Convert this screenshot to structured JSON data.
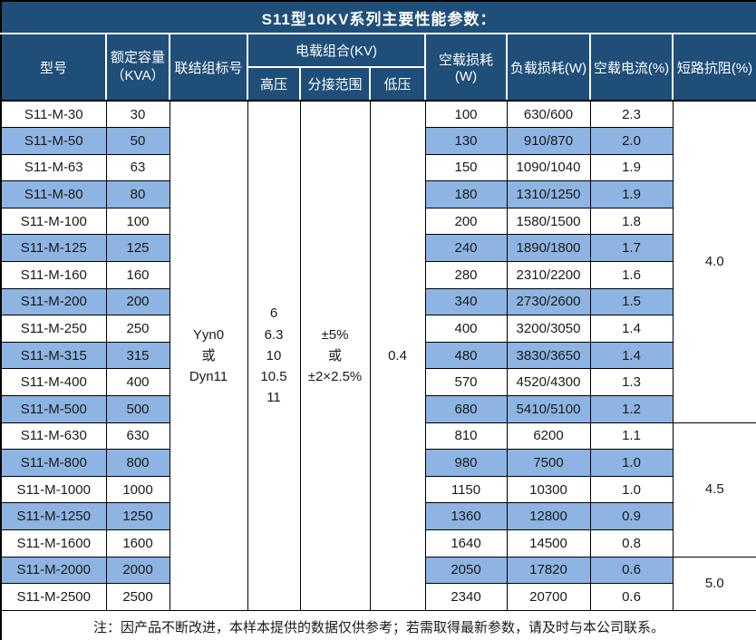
{
  "title": "S11型10KV系列主要性能参数：",
  "header": {
    "model": "型号",
    "capacity_line1": "额定容量",
    "capacity_line2": "（KVA）",
    "connection": "联结组标号",
    "voltage_combo": "电载组合(KV)",
    "hv": "高压",
    "tap_range": "分接范围",
    "lv": "低压",
    "no_load_loss": "空载损耗(W)",
    "load_loss": "负载损耗(W)",
    "no_load_current": "空载电流(%)",
    "impedance": "短路抗阻(%)"
  },
  "merged": {
    "connection": [
      "Yyn0",
      "或",
      "Dyn11"
    ],
    "hv": [
      "6",
      "6.3",
      "10",
      "10.5",
      "11"
    ],
    "tap": [
      "±5%",
      "或",
      "±2×2.5%"
    ],
    "lv": "0.4",
    "impedance_groups": [
      {
        "value": "4.0",
        "rows": 12
      },
      {
        "value": "4.5",
        "rows": 5
      },
      {
        "value": "5.0",
        "rows": 2
      }
    ]
  },
  "rows": [
    {
      "model": "S11-M-30",
      "kva": "30",
      "no_load_loss": "100",
      "load_loss": "630/600",
      "no_load_current": "2.3"
    },
    {
      "model": "S11-M-50",
      "kva": "50",
      "no_load_loss": "130",
      "load_loss": "910/870",
      "no_load_current": "2.0"
    },
    {
      "model": "S11-M-63",
      "kva": "63",
      "no_load_loss": "150",
      "load_loss": "1090/1040",
      "no_load_current": "1.9"
    },
    {
      "model": "S11-M-80",
      "kva": "80",
      "no_load_loss": "180",
      "load_loss": "1310/1250",
      "no_load_current": "1.9"
    },
    {
      "model": "S11-M-100",
      "kva": "100",
      "no_load_loss": "200",
      "load_loss": "1580/1500",
      "no_load_current": "1.8"
    },
    {
      "model": "S11-M-125",
      "kva": "125",
      "no_load_loss": "240",
      "load_loss": "1890/1800",
      "no_load_current": "1.7"
    },
    {
      "model": "S11-M-160",
      "kva": "160",
      "no_load_loss": "280",
      "load_loss": "2310/2200",
      "no_load_current": "1.6"
    },
    {
      "model": "S11-M-200",
      "kva": "200",
      "no_load_loss": "340",
      "load_loss": "2730/2600",
      "no_load_current": "1.5"
    },
    {
      "model": "S11-M-250",
      "kva": "250",
      "no_load_loss": "400",
      "load_loss": "3200/3050",
      "no_load_current": "1.4"
    },
    {
      "model": "S11-M-315",
      "kva": "315",
      "no_load_loss": "480",
      "load_loss": "3830/3650",
      "no_load_current": "1.4"
    },
    {
      "model": "S11-M-400",
      "kva": "400",
      "no_load_loss": "570",
      "load_loss": "4520/4300",
      "no_load_current": "1.3"
    },
    {
      "model": "S11-M-500",
      "kva": "500",
      "no_load_loss": "680",
      "load_loss": "5410/5100",
      "no_load_current": "1.2"
    },
    {
      "model": "S11-M-630",
      "kva": "630",
      "no_load_loss": "810",
      "load_loss": "6200",
      "no_load_current": "1.1"
    },
    {
      "model": "S11-M-800",
      "kva": "800",
      "no_load_loss": "980",
      "load_loss": "7500",
      "no_load_current": "1.0"
    },
    {
      "model": "S11-M-1000",
      "kva": "1000",
      "no_load_loss": "1150",
      "load_loss": "10300",
      "no_load_current": "1.0"
    },
    {
      "model": "S11-M-1250",
      "kva": "1250",
      "no_load_loss": "1360",
      "load_loss": "12800",
      "no_load_current": "0.9"
    },
    {
      "model": "S11-M-1600",
      "kva": "1600",
      "no_load_loss": "1640",
      "load_loss": "14500",
      "no_load_current": "0.8"
    },
    {
      "model": "S11-M-2000",
      "kva": "2000",
      "no_load_loss": "2050",
      "load_loss": "17820",
      "no_load_current": "0.6"
    },
    {
      "model": "S11-M-2500",
      "kva": "2500",
      "no_load_loss": "2340",
      "load_loss": "20700",
      "no_load_current": "0.6"
    }
  ],
  "footer": "注：因产品不断改进，本样本提供的数据仅供参考；若需取得最新参数，请及时与本公司联系。",
  "colors": {
    "header_navy": "#1F4E79",
    "stripe_blue": "#8DB4E2",
    "border_black": "#000000"
  }
}
